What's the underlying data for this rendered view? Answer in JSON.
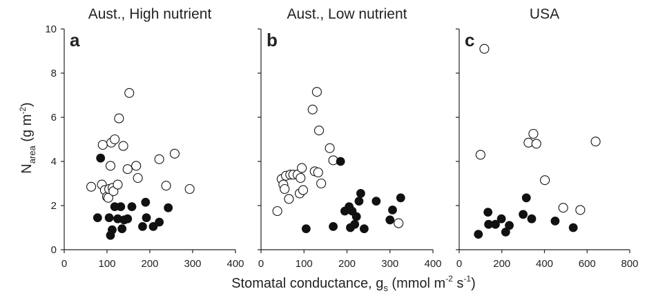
{
  "chart_data": [
    {
      "type": "scatter",
      "panel_label": "a",
      "title": "Aust., High nutrient",
      "xlim": [
        0,
        400
      ],
      "ylim": [
        0,
        10
      ],
      "xticks": [
        "0",
        "100",
        "200",
        "300",
        "400"
      ],
      "yticks": [
        "0",
        "2",
        "4",
        "6",
        "8",
        "10"
      ],
      "series": [
        {
          "marker": "open-circle",
          "points": [
            [
              63,
              2.85
            ],
            [
              88,
              2.95
            ],
            [
              90,
              4.75
            ],
            [
              95,
              2.7
            ],
            [
              100,
              2.4
            ],
            [
              103,
              2.35
            ],
            [
              105,
              2.75
            ],
            [
              108,
              3.8
            ],
            [
              110,
              4.85
            ],
            [
              113,
              2.8
            ],
            [
              115,
              2.65
            ],
            [
              118,
              5.0
            ],
            [
              125,
              2.95
            ],
            [
              128,
              5.95
            ],
            [
              138,
              4.7
            ],
            [
              148,
              3.65
            ],
            [
              152,
              7.1
            ],
            [
              168,
              3.8
            ],
            [
              172,
              3.25
            ],
            [
              222,
              4.1
            ],
            [
              238,
              2.9
            ],
            [
              258,
              4.35
            ],
            [
              293,
              2.75
            ]
          ]
        },
        {
          "marker": "filled-circle",
          "points": [
            [
              78,
              1.45
            ],
            [
              85,
              4.15
            ],
            [
              105,
              1.45
            ],
            [
              108,
              0.65
            ],
            [
              112,
              0.9
            ],
            [
              118,
              1.95
            ],
            [
              125,
              1.4
            ],
            [
              132,
              1.95
            ],
            [
              135,
              0.95
            ],
            [
              140,
              1.35
            ],
            [
              148,
              1.4
            ],
            [
              158,
              1.95
            ],
            [
              183,
              1.05
            ],
            [
              190,
              2.15
            ],
            [
              192,
              1.45
            ],
            [
              208,
              1.05
            ],
            [
              222,
              1.25
            ],
            [
              243,
              1.9
            ]
          ]
        }
      ]
    },
    {
      "type": "scatter",
      "panel_label": "b",
      "title": "Aust., Low nutrient",
      "xlim": [
        0,
        400
      ],
      "ylim": [
        0,
        10
      ],
      "xticks": [
        "0",
        "100",
        "200",
        "300",
        "400"
      ],
      "yticks": [
        "0",
        "2",
        "4",
        "6",
        "8",
        "10"
      ],
      "series": [
        {
          "marker": "open-circle",
          "points": [
            [
              38,
              1.75
            ],
            [
              48,
              3.2
            ],
            [
              52,
              2.95
            ],
            [
              55,
              2.75
            ],
            [
              58,
              3.35
            ],
            [
              65,
              2.3
            ],
            [
              68,
              3.4
            ],
            [
              75,
              3.4
            ],
            [
              85,
              3.4
            ],
            [
              90,
              2.55
            ],
            [
              92,
              3.25
            ],
            [
              95,
              3.7
            ],
            [
              98,
              2.7
            ],
            [
              120,
              6.35
            ],
            [
              125,
              3.55
            ],
            [
              130,
              7.15
            ],
            [
              133,
              3.5
            ],
            [
              135,
              5.4
            ],
            [
              140,
              3.0
            ],
            [
              160,
              4.6
            ],
            [
              168,
              4.05
            ],
            [
              320,
              1.2
            ]
          ]
        },
        {
          "marker": "filled-circle",
          "points": [
            [
              105,
              0.95
            ],
            [
              168,
              1.05
            ],
            [
              185,
              4.0
            ],
            [
              195,
              1.75
            ],
            [
              205,
              1.95
            ],
            [
              208,
              1.0
            ],
            [
              212,
              1.75
            ],
            [
              218,
              1.15
            ],
            [
              222,
              1.5
            ],
            [
              228,
              2.2
            ],
            [
              232,
              2.55
            ],
            [
              240,
              0.95
            ],
            [
              268,
              2.2
            ],
            [
              300,
              1.35
            ],
            [
              306,
              1.8
            ],
            [
              325,
              2.35
            ]
          ]
        }
      ]
    },
    {
      "type": "scatter",
      "panel_label": "c",
      "title": "USA",
      "xlim": [
        0,
        800
      ],
      "ylim": [
        0,
        10
      ],
      "xticks": [
        "0",
        "200",
        "400",
        "600",
        "800"
      ],
      "yticks": [
        "0",
        "2",
        "4",
        "6",
        "8",
        "10"
      ],
      "series": [
        {
          "marker": "open-circle",
          "points": [
            [
              100,
              4.3
            ],
            [
              118,
              9.1
            ],
            [
              325,
              4.85
            ],
            [
              348,
              5.25
            ],
            [
              362,
              4.8
            ],
            [
              402,
              3.15
            ],
            [
              488,
              1.9
            ],
            [
              568,
              1.8
            ],
            [
              640,
              4.9
            ]
          ]
        },
        {
          "marker": "filled-circle",
          "points": [
            [
              90,
              0.7
            ],
            [
              135,
              1.7
            ],
            [
              138,
              1.15
            ],
            [
              170,
              1.15
            ],
            [
              198,
              1.4
            ],
            [
              218,
              0.8
            ],
            [
              235,
              1.1
            ],
            [
              300,
              1.6
            ],
            [
              315,
              2.35
            ],
            [
              340,
              1.4
            ],
            [
              450,
              1.3
            ],
            [
              535,
              1.0
            ]
          ]
        }
      ]
    }
  ],
  "axes": {
    "ylabel": {
      "main": "N",
      "sub": "area",
      "rest": " (g m",
      "sup": "-2",
      "close": ")"
    },
    "xlabel": {
      "main": "Stomatal conductance, g",
      "sub": "s",
      "rest": " (mmol m",
      "sup1": "-2",
      "mid": " s",
      "sup2": "-1",
      "close": ")"
    }
  },
  "colors": {
    "axis": "#222222",
    "marker_fill": "#111111",
    "open_fill": "#ffffff"
  }
}
